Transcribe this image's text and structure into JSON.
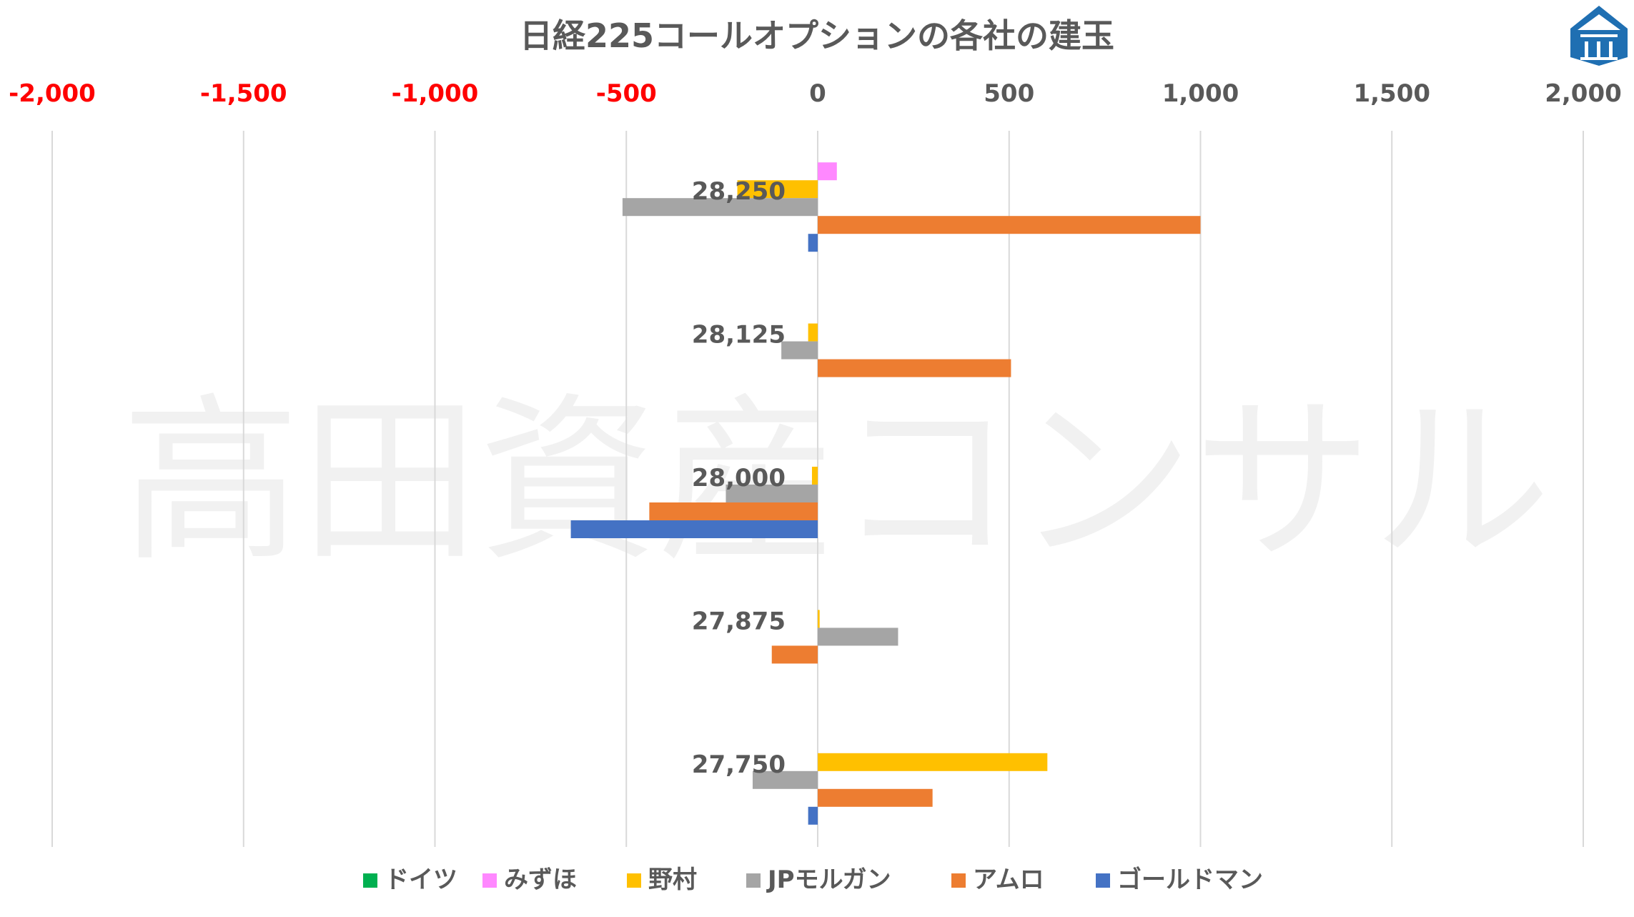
{
  "chart_data": {
    "type": "bar",
    "orientation": "horizontal",
    "title": "日経225コールオプションの各社の建玉",
    "x_ticks": [
      "-2,000",
      "-1,500",
      "-1,000",
      "-500",
      "0",
      "500",
      "1,000",
      "1,500",
      "2,000"
    ],
    "x_tick_values": [
      -2000,
      -1500,
      -1000,
      -500,
      0,
      500,
      1000,
      1500,
      2000
    ],
    "negative_tick_color": "#ff0000",
    "positive_tick_color": "#595959",
    "xlim": [
      -2000,
      2000
    ],
    "axis_position": "top",
    "grid": true,
    "legend_position": "bottom",
    "categories": [
      "28,250",
      "28,125",
      "28,000",
      "27,875",
      "27,750"
    ],
    "series": [
      {
        "name": "ドイツ",
        "color": "#00b050",
        "values": [
          0,
          0,
          0,
          0,
          0
        ]
      },
      {
        "name": "みずほ",
        "color": "#ff88ff",
        "values": [
          50,
          0,
          0,
          0,
          0
        ]
      },
      {
        "name": "野村",
        "color": "#ffc000",
        "values": [
          -210,
          -25,
          -15,
          5,
          600
        ]
      },
      {
        "name": "JPモルガン",
        "color": "#a5a5a5",
        "values": [
          -510,
          -95,
          -240,
          210,
          -170
        ]
      },
      {
        "name": "アムロ",
        "color": "#ed7d31",
        "values": [
          1000,
          505,
          -440,
          -120,
          300
        ]
      },
      {
        "name": "ゴールドマン",
        "color": "#4472c4",
        "values": [
          -25,
          0,
          -645,
          0,
          -25
        ]
      }
    ]
  },
  "watermark": "高田資産コンサル",
  "logo": {
    "icon": "building-logo-icon",
    "color": "#1f6fb2"
  }
}
